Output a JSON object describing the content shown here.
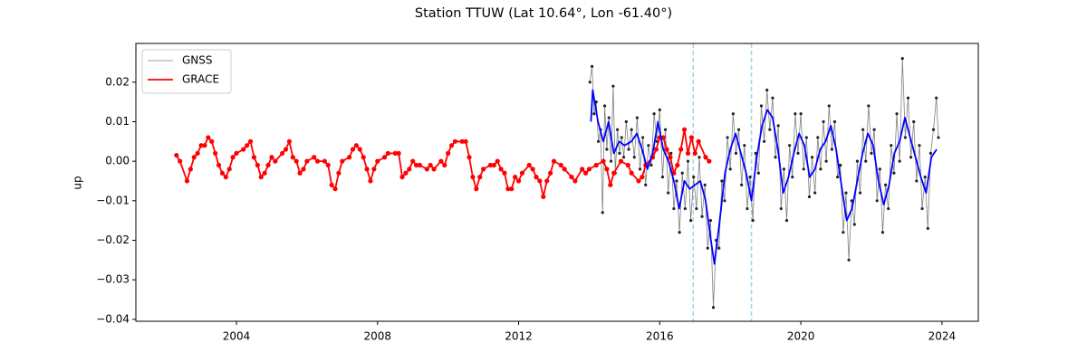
{
  "chart_data": {
    "type": "line",
    "title": "Station TTUW (Lat 10.64°, Lon -61.40°)",
    "ylabel": "up",
    "xlim": [
      2001.15,
      2025.03
    ],
    "ylim": [
      -0.0405,
      0.0298
    ],
    "xticks": [
      2004,
      2008,
      2012,
      2016,
      2020,
      2024
    ],
    "yticks": [
      {
        "value": -0.04,
        "label": "−0.04"
      },
      {
        "value": -0.03,
        "label": "−0.03"
      },
      {
        "value": -0.02,
        "label": "−0.02"
      },
      {
        "value": -0.01,
        "label": "−0.01"
      },
      {
        "value": 0,
        "label": "0.00"
      },
      {
        "value": 0.01,
        "label": "0.01"
      },
      {
        "value": 0.02,
        "label": "0.02"
      }
    ],
    "legend": "upper left",
    "grid": false,
    "vlines": [
      2016.95,
      2018.6
    ],
    "vline_color": "#9fd3e6",
    "series": [
      {
        "name": "GNSS",
        "color": "#808080",
        "line_width": 0.8,
        "marker_size": 1.6,
        "marker_color": "#222222",
        "x": [
          2014.02,
          2014.08,
          2014.14,
          2014.2,
          2014.26,
          2014.32,
          2014.38,
          2014.44,
          2014.5,
          2014.56,
          2014.62,
          2014.68,
          2014.74,
          2014.8,
          2014.86,
          2014.92,
          2014.98,
          2015.05,
          2015.12,
          2015.2,
          2015.28,
          2015.36,
          2015.44,
          2015.52,
          2015.6,
          2015.68,
          2015.76,
          2015.84,
          2015.92,
          2016.0,
          2016.08,
          2016.16,
          2016.24,
          2016.32,
          2016.4,
          2016.48,
          2016.56,
          2016.64,
          2016.72,
          2016.8,
          2016.88,
          2016.96,
          2017.04,
          2017.12,
          2017.2,
          2017.28,
          2017.36,
          2017.44,
          2017.52,
          2017.6,
          2017.68,
          2017.76,
          2017.84,
          2017.92,
          2018.0,
          2018.08,
          2018.16,
          2018.24,
          2018.32,
          2018.4,
          2018.48,
          2018.56,
          2018.64,
          2018.72,
          2018.8,
          2018.88,
          2018.96,
          2019.04,
          2019.12,
          2019.2,
          2019.28,
          2019.36,
          2019.44,
          2019.52,
          2019.6,
          2019.68,
          2019.76,
          2019.84,
          2019.92,
          2020.0,
          2020.08,
          2020.16,
          2020.24,
          2020.32,
          2020.4,
          2020.48,
          2020.56,
          2020.64,
          2020.72,
          2020.8,
          2020.88,
          2020.96,
          2021.04,
          2021.12,
          2021.2,
          2021.28,
          2021.36,
          2021.44,
          2021.52,
          2021.6,
          2021.68,
          2021.76,
          2021.84,
          2021.92,
          2022.0,
          2022.08,
          2022.16,
          2022.24,
          2022.32,
          2022.4,
          2022.48,
          2022.56,
          2022.64,
          2022.72,
          2022.8,
          2022.88,
          2022.96,
          2023.04,
          2023.12,
          2023.2,
          2023.28,
          2023.36,
          2023.44,
          2023.52,
          2023.6,
          2023.68,
          2023.76,
          2023.84,
          2023.9
        ],
        "values": [
          0.02,
          0.024,
          0.012,
          0.015,
          0.005,
          0.008,
          -0.013,
          0.014,
          0.003,
          0.011,
          0.0,
          0.019,
          -0.003,
          0.008,
          0.002,
          0.006,
          0.001,
          0.01,
          0.003,
          0.008,
          0.001,
          0.011,
          -0.002,
          0.006,
          -0.006,
          0.004,
          -0.001,
          0.012,
          0.005,
          0.013,
          -0.004,
          0.008,
          -0.008,
          0.002,
          -0.012,
          -0.005,
          -0.018,
          -0.003,
          -0.012,
          0.0,
          -0.015,
          -0.004,
          -0.012,
          0.001,
          -0.014,
          -0.006,
          -0.022,
          -0.015,
          -0.037,
          -0.02,
          -0.022,
          -0.005,
          -0.01,
          0.006,
          -0.002,
          0.012,
          0.002,
          0.008,
          -0.006,
          0.004,
          -0.012,
          -0.004,
          -0.015,
          0.002,
          -0.003,
          0.014,
          0.005,
          0.018,
          0.008,
          0.016,
          0.001,
          0.009,
          -0.012,
          -0.002,
          -0.015,
          0.004,
          -0.004,
          0.012,
          0.002,
          0.012,
          -0.002,
          0.006,
          -0.009,
          0.001,
          -0.008,
          0.006,
          -0.002,
          0.01,
          0.0,
          0.014,
          0.003,
          0.01,
          -0.004,
          -0.001,
          -0.018,
          -0.008,
          -0.025,
          -0.01,
          -0.016,
          0.0,
          -0.008,
          0.008,
          0.0,
          0.014,
          0.002,
          0.008,
          -0.01,
          -0.002,
          -0.018,
          -0.006,
          -0.012,
          0.004,
          -0.003,
          0.012,
          0.0,
          0.026,
          0.006,
          0.016,
          0.001,
          0.01,
          -0.005,
          0.004,
          -0.012,
          -0.004,
          -0.017,
          0.002,
          0.008,
          0.016,
          0.006
        ]
      },
      {
        "name": "GRACE",
        "color": "#ff0000",
        "line_width": 1.8,
        "marker_size": 2.6,
        "marker_color": "#ff0000",
        "x": [
          2002.3,
          2002.4,
          2002.6,
          2002.7,
          2002.8,
          2002.9,
          2003.0,
          2003.1,
          2003.2,
          2003.3,
          2003.4,
          2003.5,
          2003.6,
          2003.7,
          2003.8,
          2003.9,
          2004.0,
          2004.2,
          2004.3,
          2004.4,
          2004.5,
          2004.6,
          2004.7,
          2004.8,
          2004.9,
          2005.0,
          2005.1,
          2005.3,
          2005.4,
          2005.5,
          2005.6,
          2005.7,
          2005.8,
          2005.9,
          2006.0,
          2006.2,
          2006.3,
          2006.5,
          2006.6,
          2006.7,
          2006.8,
          2006.9,
          2007.0,
          2007.2,
          2007.3,
          2007.4,
          2007.5,
          2007.6,
          2007.7,
          2007.8,
          2007.9,
          2008.0,
          2008.2,
          2008.3,
          2008.5,
          2008.6,
          2008.7,
          2008.8,
          2008.9,
          2009.0,
          2009.1,
          2009.2,
          2009.4,
          2009.5,
          2009.6,
          2009.8,
          2009.9,
          2010.0,
          2010.1,
          2010.2,
          2010.4,
          2010.5,
          2010.6,
          2010.7,
          2010.8,
          2010.9,
          2011.0,
          2011.2,
          2011.3,
          2011.4,
          2011.5,
          2011.6,
          2011.7,
          2011.8,
          2011.9,
          2012.0,
          2012.1,
          2012.3,
          2012.4,
          2012.5,
          2012.6,
          2012.7,
          2012.8,
          2012.9,
          2013.0,
          2013.2,
          2013.3,
          2013.5,
          2013.6,
          2013.8,
          2013.9,
          2014.0,
          2014.2,
          2014.4,
          2014.5,
          2014.6,
          2014.7,
          2014.9,
          2015.1,
          2015.2,
          2015.4,
          2015.5,
          2015.6,
          2015.8,
          2015.9,
          2016.0,
          2016.1,
          2016.2,
          2016.3,
          2016.4,
          2016.5,
          2016.6,
          2016.7,
          2016.8,
          2016.9,
          2017.0,
          2017.1,
          2017.3,
          2017.4
        ],
        "values": [
          0.0015,
          0.0,
          -0.005,
          -0.002,
          0.001,
          0.002,
          0.004,
          0.004,
          0.006,
          0.005,
          0.002,
          -0.001,
          -0.003,
          -0.004,
          -0.002,
          0.001,
          0.002,
          0.003,
          0.004,
          0.005,
          0.001,
          -0.001,
          -0.004,
          -0.003,
          -0.001,
          0.001,
          0.0,
          0.002,
          0.003,
          0.005,
          0.001,
          0.0,
          -0.003,
          -0.002,
          0.0,
          0.001,
          0.0,
          0.0,
          -0.001,
          -0.006,
          -0.007,
          -0.003,
          0.0,
          0.001,
          0.003,
          0.004,
          0.003,
          0.001,
          -0.002,
          -0.005,
          -0.002,
          0.0,
          0.001,
          0.002,
          0.002,
          0.002,
          -0.004,
          -0.003,
          -0.002,
          0.0,
          -0.001,
          -0.001,
          -0.002,
          -0.001,
          -0.002,
          0.0,
          -0.001,
          0.002,
          0.004,
          0.005,
          0.005,
          0.005,
          0.001,
          -0.004,
          -0.007,
          -0.004,
          -0.002,
          -0.001,
          -0.001,
          0.0,
          -0.002,
          -0.003,
          -0.007,
          -0.007,
          -0.004,
          -0.005,
          -0.003,
          -0.001,
          -0.002,
          -0.004,
          -0.005,
          -0.009,
          -0.005,
          -0.003,
          0.0,
          -0.001,
          -0.002,
          -0.004,
          -0.005,
          -0.002,
          -0.003,
          -0.002,
          -0.001,
          0.0,
          -0.002,
          -0.006,
          -0.003,
          0.0,
          -0.001,
          -0.003,
          -0.005,
          -0.004,
          -0.001,
          0.001,
          0.003,
          0.006,
          0.006,
          0.003,
          0.001,
          -0.003,
          -0.001,
          0.003,
          0.008,
          0.002,
          0.006,
          0.002,
          0.005,
          0.001,
          0.0
        ]
      },
      {
        "color": "#0000ff",
        "line_width": 1.8,
        "marker_size": 0,
        "marker_color": "#0000ff",
        "x": [
          2014.05,
          2014.1,
          2014.25,
          2014.4,
          2014.55,
          2014.7,
          2014.85,
          2015.0,
          2015.2,
          2015.35,
          2015.5,
          2015.65,
          2015.8,
          2015.95,
          2016.1,
          2016.25,
          2016.4,
          2016.55,
          2016.7,
          2016.85,
          2017.0,
          2017.15,
          2017.3,
          2017.45,
          2017.55,
          2017.7,
          2017.85,
          2018.0,
          2018.15,
          2018.3,
          2018.45,
          2018.6,
          2018.75,
          2018.9,
          2019.05,
          2019.2,
          2019.35,
          2019.5,
          2019.65,
          2019.8,
          2019.95,
          2020.1,
          2020.25,
          2020.4,
          2020.55,
          2020.7,
          2020.85,
          2021.0,
          2021.15,
          2021.3,
          2021.45,
          2021.6,
          2021.75,
          2021.9,
          2022.05,
          2022.2,
          2022.35,
          2022.5,
          2022.65,
          2022.8,
          2022.95,
          2023.1,
          2023.25,
          2023.4,
          2023.55,
          2023.7,
          2023.85
        ],
        "values": [
          0.01,
          0.018,
          0.01,
          0.005,
          0.01,
          0.002,
          0.005,
          0.004,
          0.005,
          0.007,
          0.003,
          -0.002,
          0.002,
          0.01,
          0.003,
          0.0,
          -0.005,
          -0.012,
          -0.005,
          -0.007,
          -0.006,
          -0.005,
          -0.01,
          -0.02,
          -0.026,
          -0.015,
          -0.003,
          0.003,
          0.007,
          0.002,
          -0.003,
          -0.01,
          0.001,
          0.009,
          0.013,
          0.011,
          0.003,
          -0.008,
          -0.004,
          0.002,
          0.007,
          0.004,
          -0.004,
          -0.002,
          0.003,
          0.005,
          0.009,
          0.003,
          -0.006,
          -0.015,
          -0.012,
          -0.005,
          0.002,
          0.007,
          0.004,
          -0.005,
          -0.011,
          -0.006,
          0.002,
          0.005,
          0.011,
          0.006,
          0.001,
          -0.004,
          -0.008,
          0.001,
          0.003
        ]
      }
    ]
  }
}
